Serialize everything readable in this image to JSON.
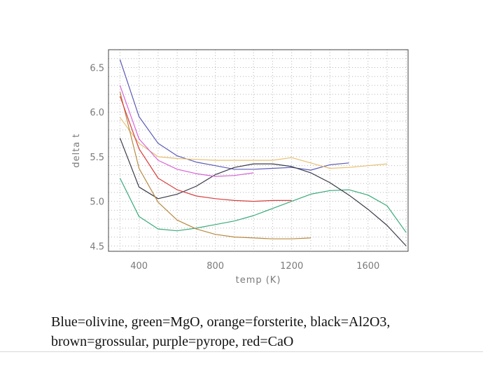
{
  "chart_data": {
    "type": "line",
    "title": "",
    "xlabel": "temp (K)",
    "ylabel": "delta t",
    "xlim": [
      240,
      1810
    ],
    "ylim": [
      4.44,
      6.7
    ],
    "xticks": [
      400,
      800,
      1200,
      1600
    ],
    "yticks": [
      4.5,
      5.0,
      5.5,
      6.0,
      6.5
    ],
    "xtick_labels": [
      "400",
      "800",
      "1200",
      "1600"
    ],
    "ytick_labels": [
      "4.5",
      "5.0",
      "5.5",
      "6.0",
      "6.5"
    ],
    "grid": true,
    "series": [
      {
        "color": "#5b5bb8",
        "x": [
          300,
          400,
          500,
          600,
          700,
          800,
          900,
          1000,
          1100,
          1200,
          1300,
          1400,
          1500
        ],
        "y": [
          6.59,
          5.95,
          5.65,
          5.51,
          5.44,
          5.4,
          5.36,
          5.36,
          5.37,
          5.38,
          5.35,
          5.41,
          5.43
        ]
      },
      {
        "color": "#3aaa7a",
        "x": [
          300,
          400,
          500,
          600,
          700,
          800,
          900,
          1000,
          1100,
          1200,
          1300,
          1400,
          1500,
          1600,
          1700,
          1800
        ],
        "y": [
          5.26,
          4.83,
          4.69,
          4.67,
          4.7,
          4.74,
          4.78,
          4.84,
          4.92,
          5.0,
          5.08,
          5.12,
          5.13,
          5.07,
          4.95,
          4.65
        ]
      },
      {
        "color": "#e8c070",
        "x": [
          300,
          400,
          500,
          600,
          700,
          800,
          900,
          1000,
          1100,
          1200,
          1300,
          1400,
          1500,
          1600,
          1700
        ],
        "y": [
          5.94,
          5.65,
          5.5,
          5.48,
          5.47,
          5.46,
          5.46,
          5.46,
          5.46,
          5.49,
          5.43,
          5.37,
          5.38,
          5.4,
          5.42
        ]
      },
      {
        "color": "#3a3a4a",
        "x": [
          300,
          400,
          500,
          600,
          700,
          800,
          900,
          1000,
          1100,
          1200,
          1300,
          1400,
          1500,
          1600,
          1700,
          1800
        ],
        "y": [
          5.71,
          5.16,
          5.03,
          5.08,
          5.17,
          5.3,
          5.38,
          5.42,
          5.42,
          5.39,
          5.32,
          5.21,
          5.07,
          4.91,
          4.73,
          4.5
        ]
      },
      {
        "color": "#b88a40",
        "x": [
          300,
          400,
          500,
          600,
          700,
          800,
          900,
          1000,
          1100,
          1200,
          1300
        ],
        "y": [
          6.23,
          5.37,
          4.99,
          4.79,
          4.69,
          4.63,
          4.6,
          4.59,
          4.58,
          4.58,
          4.59
        ]
      },
      {
        "color": "#d863d8",
        "x": [
          300,
          400,
          500,
          600,
          700,
          800,
          900,
          1000
        ],
        "y": [
          6.3,
          5.7,
          5.46,
          5.36,
          5.31,
          5.28,
          5.29,
          5.32
        ]
      },
      {
        "color": "#d84040",
        "x": [
          300,
          400,
          500,
          600,
          700,
          800,
          900,
          1000,
          1100,
          1200
        ],
        "y": [
          6.18,
          5.59,
          5.26,
          5.13,
          5.06,
          5.03,
          5.01,
          5.0,
          5.01,
          5.01
        ]
      }
    ]
  },
  "caption": {
    "line1": "Blue=olivine, green=MgO, orange=forsterite, black=Al2O3,",
    "line2": "brown=grossular, purple=pyrope, red=CaO"
  }
}
